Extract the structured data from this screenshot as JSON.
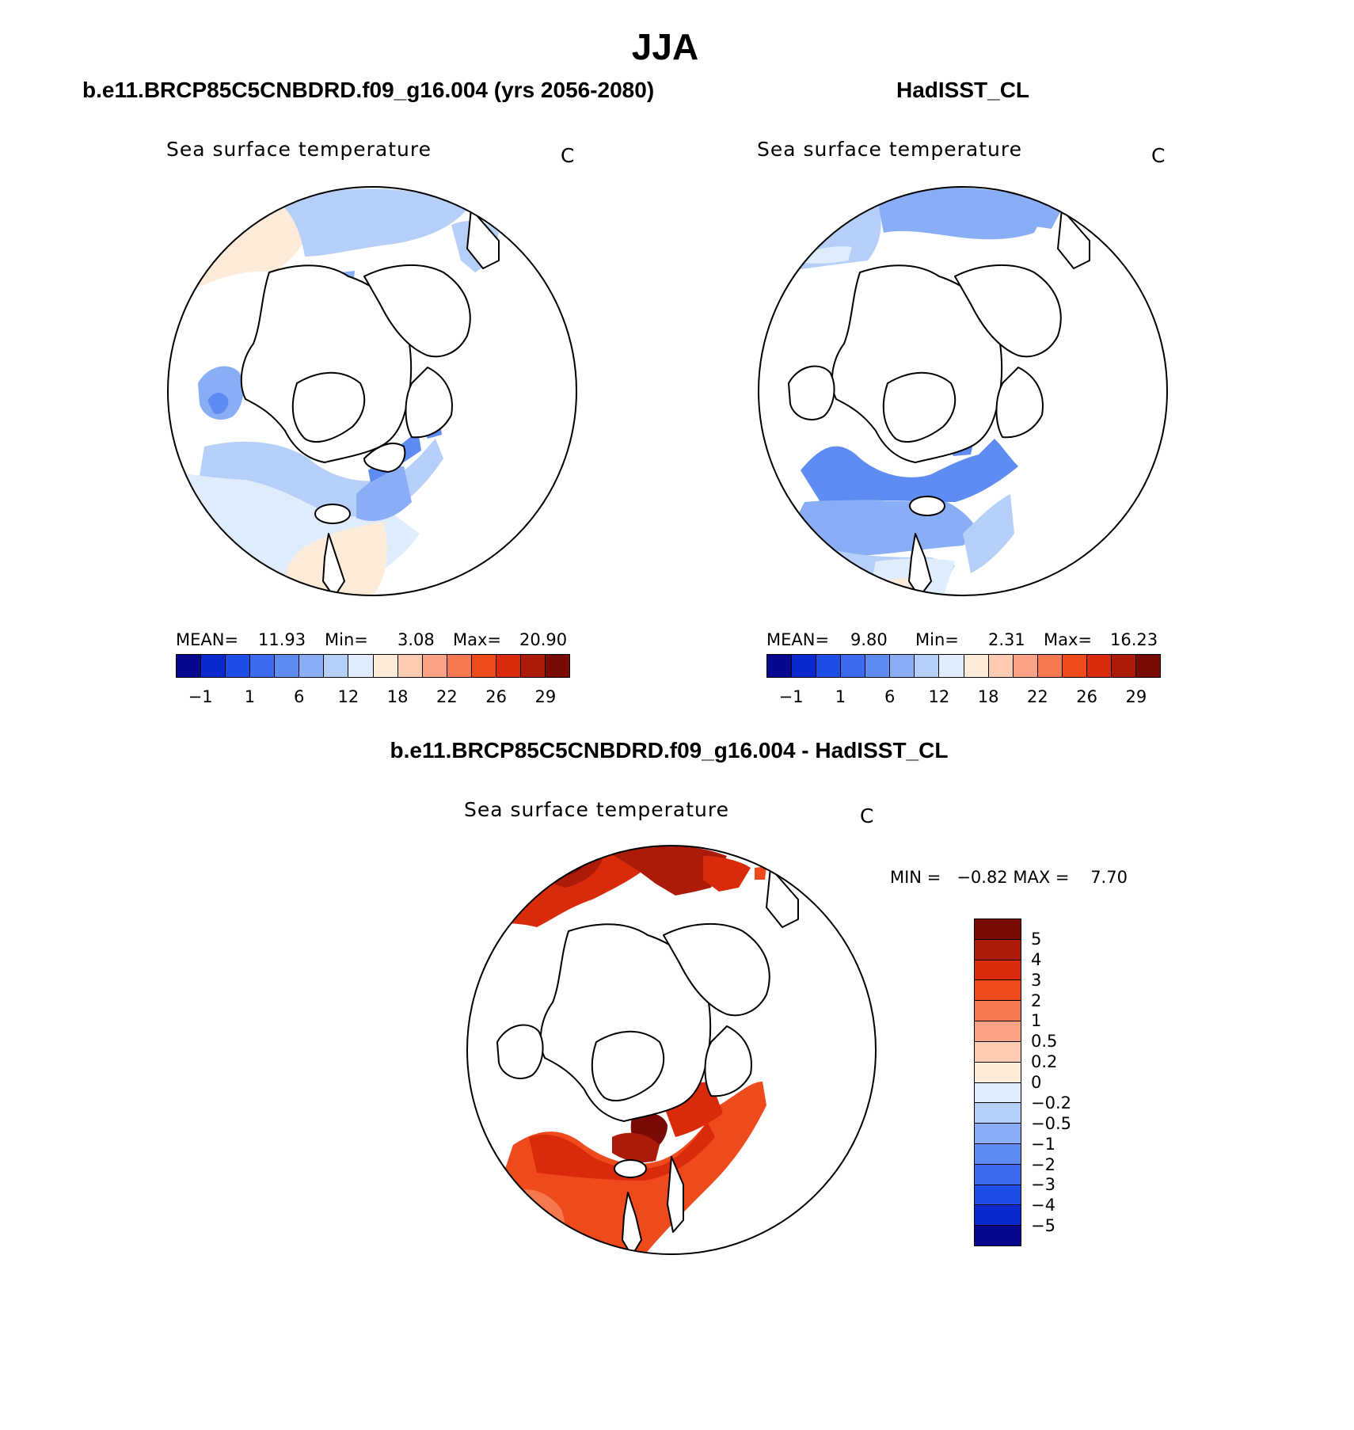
{
  "page_title": "JJA",
  "palettes": {
    "abs": [
      "#08088f",
      "#0b2acd",
      "#1d4ee6",
      "#3c6bf0",
      "#5e8cf2",
      "#89aef5",
      "#b6cff8",
      "#dfecfc",
      "#fdebd9",
      "#fccbb0",
      "#faa386",
      "#f6784e",
      "#ef4a1c",
      "#d92b0c",
      "#ac1a08",
      "#7a0a04"
    ],
    "diff": [
      "#7a0a04",
      "#ac1a08",
      "#d92b0c",
      "#ef4a1c",
      "#f6784e",
      "#faa386",
      "#fccbb0",
      "#fdebd9",
      "#dfecfc",
      "#b6cff8",
      "#89aef5",
      "#5e8cf2",
      "#3c6bf0",
      "#1d4ee6",
      "#0b2acd",
      "#08088f"
    ]
  },
  "panels": {
    "model": {
      "case_title": "b.e11.BRCP85C5CNBDRD.f09_g16.004 (yrs 2056-2080)",
      "variable": "Sea surface temperature",
      "units": "C",
      "mean_label": "MEAN=",
      "mean": "11.93",
      "min_label": "Min=",
      "min": "3.08",
      "max_label": "Max=",
      "max": "20.90",
      "tick_labels": [
        "−1",
        "1",
        "6",
        "12",
        "18",
        "22",
        "26",
        "29"
      ]
    },
    "obs": {
      "case_title": "HadISST_CL",
      "variable": "Sea surface temperature",
      "units": "C",
      "mean_label": "MEAN=",
      "mean": "9.80",
      "min_label": "Min=",
      "min": "2.31",
      "max_label": "Max=",
      "max": "16.23",
      "tick_labels": [
        "−1",
        "1",
        "6",
        "12",
        "18",
        "22",
        "26",
        "29"
      ]
    },
    "diff": {
      "case_title": "b.e11.BRCP85C5CNBDRD.f09_g16.004 - HadISST_CL",
      "variable": "Sea surface temperature",
      "units": "C",
      "minmax_text": "MIN =   −0.82 MAX =    7.70",
      "tick_labels": [
        "5",
        "4",
        "3",
        "2",
        "1",
        "0.5",
        "0.2",
        "0",
        "−0.2",
        "−0.5",
        "−1",
        "−2",
        "−3",
        "−4",
        "−5"
      ]
    }
  }
}
